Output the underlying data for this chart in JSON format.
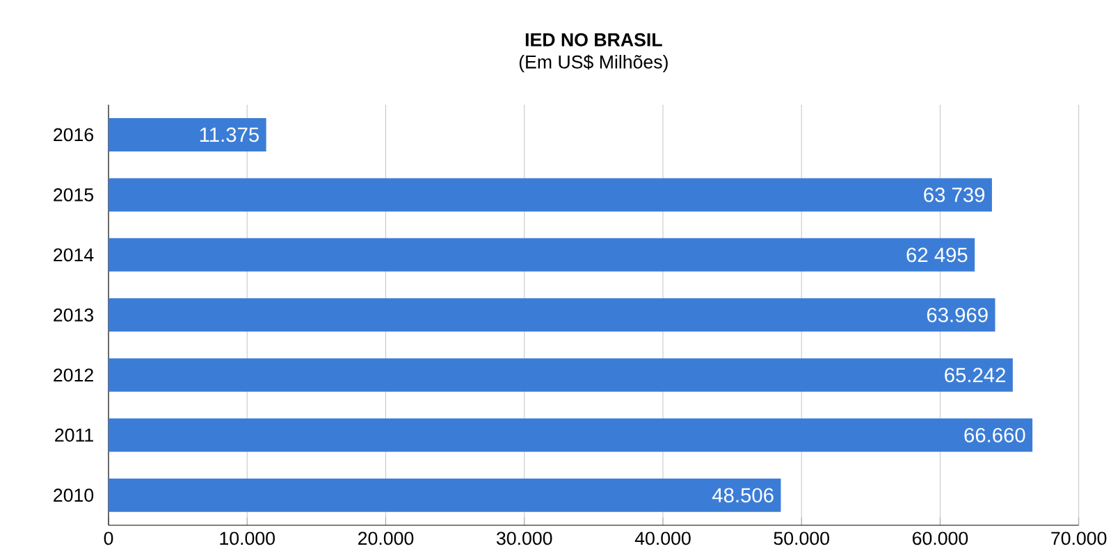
{
  "chart_data": {
    "type": "bar",
    "orientation": "horizontal",
    "title": "IED NO BRASIL",
    "subtitle": "(Em US$ Milhões)",
    "categories": [
      "2016",
      "2015",
      "2014",
      "2013",
      "2012",
      "2011",
      "2010"
    ],
    "values": [
      11375,
      63739,
      62495,
      63969,
      65242,
      66660,
      48506
    ],
    "value_labels": [
      "11.375",
      "63 739",
      "62 495",
      "63.969",
      "65.242",
      "66.660",
      "48.506"
    ],
    "color": "#3b7dd6",
    "xlim": [
      0,
      70000
    ],
    "xticks": [
      0,
      {
        "value": 10000,
        "label": "10.000"
      },
      {
        "value": 20000,
        "label": "20.000"
      },
      {
        "value": 30000,
        "label": "30.000"
      },
      {
        "value": 40000,
        "label": "40.000"
      },
      {
        "value": 50000,
        "label": "50.000"
      },
      {
        "value": 60000,
        "label": "60.000"
      },
      {
        "value": 70000,
        "label": "70.000"
      }
    ],
    "grid": "x"
  }
}
